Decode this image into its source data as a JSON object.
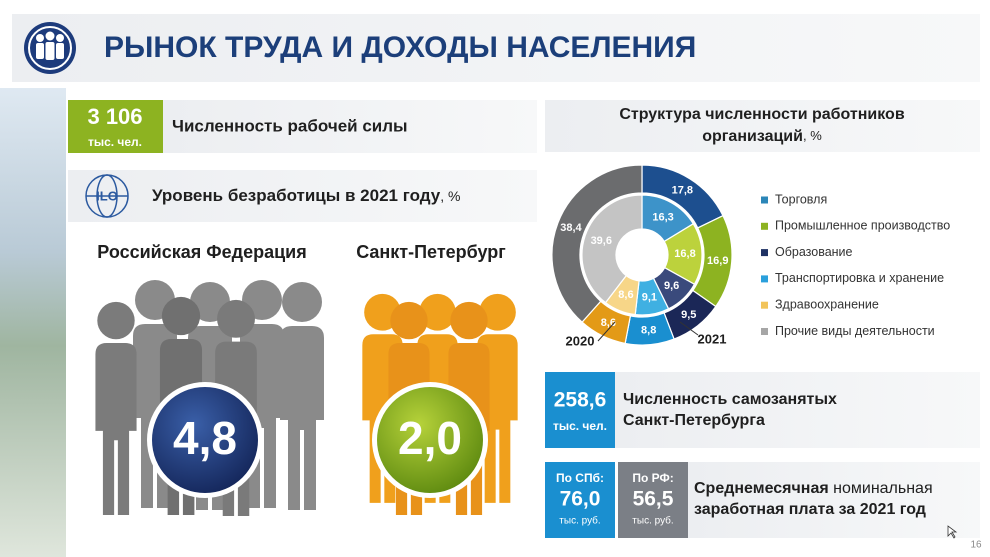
{
  "header": {
    "title": "РЫНОК ТРУДА И ДОХОДЫ НАСЕЛЕНИЯ"
  },
  "labor_force": {
    "value": "3 106",
    "unit": "тыс. чел.",
    "label": "Численность рабочей силы"
  },
  "unemployment": {
    "title": "Уровень безработицы в 2021 году",
    "unit": ", %",
    "regions": [
      {
        "name": "Российская Федерация",
        "value": "4,8"
      },
      {
        "name": "Санкт-Петербург",
        "value": "2,0"
      }
    ]
  },
  "structure": {
    "type": "donut",
    "title_lines": [
      "Структура численности работников",
      "организаций"
    ],
    "unit": ", %",
    "legend": [
      {
        "label": "Торговля",
        "color": "#2b86b8"
      },
      {
        "label": "Промышленное производство",
        "color": "#8db321"
      },
      {
        "label": "Образование",
        "color": "#1f3264"
      },
      {
        "label": "Транспортировка и хранение",
        "color": "#2aa0dc"
      },
      {
        "label": "Здравоохранение",
        "color": "#f2c45a"
      },
      {
        "label": "Прочие виды деятельности",
        "color": "#a6a6a6"
      }
    ],
    "series": [
      {
        "name": "2020",
        "values": [
          16.3,
          16.8,
          9.6,
          9.1,
          8.6,
          39.6
        ],
        "value_labels": [
          "16,3",
          "16,8",
          "9,6",
          "9,1",
          "8,6",
          "39,6"
        ],
        "colors": [
          "#3d93c9",
          "#bcd23c",
          "#3a4a7c",
          "#3fb0e2",
          "#f7d688",
          "#c4c4c4"
        ]
      },
      {
        "name": "2021",
        "values": [
          17.8,
          16.9,
          9.5,
          8.8,
          8.6,
          38.4
        ],
        "value_labels": [
          "17,8",
          "16,9",
          "9,5",
          "8,8",
          "8,6",
          "38,4"
        ],
        "colors": [
          "#1d4f8f",
          "#8db321",
          "#1b2757",
          "#1a8fd0",
          "#e39a17",
          "#6b6c6e"
        ]
      }
    ]
  },
  "self_employed": {
    "value": "258,6",
    "unit": "тыс. чел.",
    "label_lines": [
      "Численность самозанятых",
      "Санкт-Петербурга"
    ]
  },
  "wages": {
    "spb": {
      "label": "По СПб:",
      "value": "76,0",
      "unit": "тыс. руб."
    },
    "rf": {
      "label": "По РФ:",
      "value": "56,5",
      "unit": "тыс. руб."
    },
    "label_bold": "Среднемесячная",
    "label_regular": "номинальная",
    "label_line2": "заработная плата за 2021 год"
  },
  "page_number": "16"
}
